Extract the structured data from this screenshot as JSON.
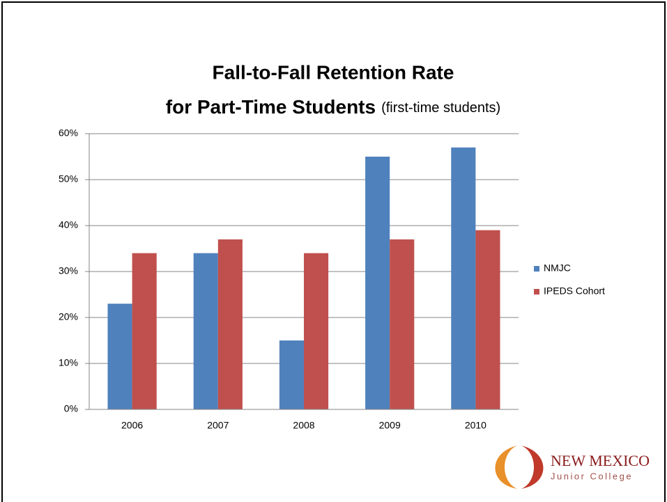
{
  "chart_data": {
    "type": "bar",
    "title": [
      "Fall-to-Fall Retention Rate",
      "for Part-Time Students"
    ],
    "subtitle": "(first-time students)",
    "categories": [
      "2006",
      "2007",
      "2008",
      "2009",
      "2010"
    ],
    "series": [
      {
        "name": "NMJC",
        "color": "#4f81bd",
        "values": [
          23,
          34,
          15,
          55,
          57
        ]
      },
      {
        "name": "IPEDS Cohort",
        "color": "#c0504d",
        "values": [
          34,
          37,
          34,
          37,
          39
        ]
      }
    ],
    "ylim": [
      0,
      60
    ],
    "yticks": [
      {
        "value": 0,
        "label": "0%"
      },
      {
        "value": 10,
        "label": "10%"
      },
      {
        "value": 20,
        "label": "20%"
      },
      {
        "value": 30,
        "label": "30%"
      },
      {
        "value": 40,
        "label": "40%"
      },
      {
        "value": 50,
        "label": "50%"
      },
      {
        "value": 60,
        "label": "60%"
      }
    ],
    "grid": true,
    "legend": "right"
  },
  "logo": {
    "line1": "NEW MEXICO",
    "line2": "Junior College"
  }
}
